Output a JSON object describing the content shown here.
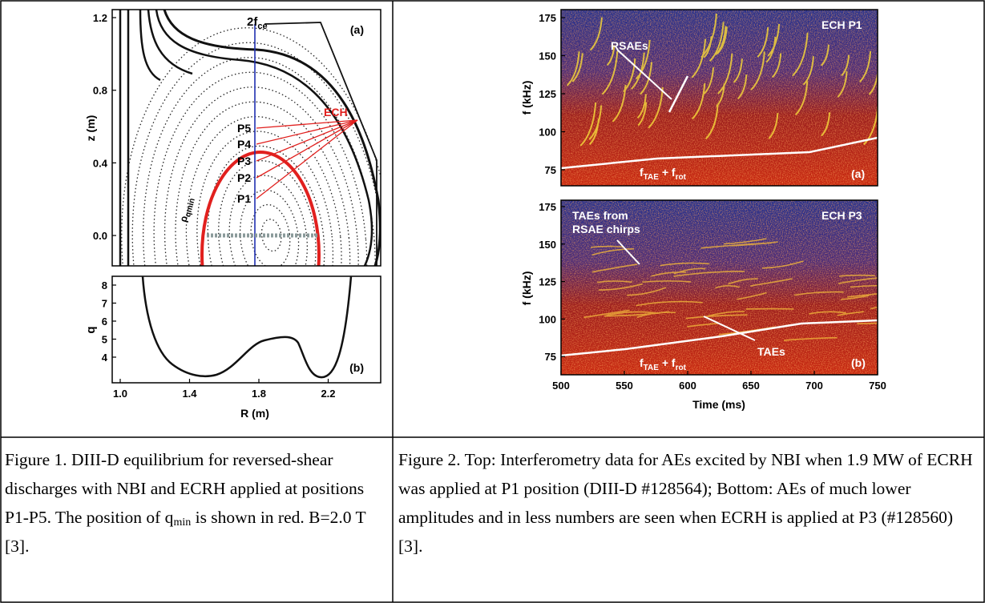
{
  "figure1": {
    "panel_a": {
      "label": "(a)",
      "y_axis_label": "z (m)",
      "yticks": [
        "1.2",
        "0.8",
        "0.4",
        "0.0"
      ],
      "beam_label": {
        "main": "2f",
        "sub": "ce"
      },
      "ech_label": "ECH",
      "positions": [
        "P5",
        "P4",
        "P3",
        "P2",
        "P1"
      ],
      "qmin_label": {
        "main": "ρ",
        "sub": "qmin"
      }
    },
    "panel_b": {
      "label": "(b)",
      "y_axis_label": "q",
      "yticks": [
        "8",
        "7",
        "6",
        "5",
        "4"
      ],
      "xticks": [
        "1.0",
        "1.4",
        "1.8",
        "2.2"
      ],
      "x_axis_label": "R (m)"
    },
    "caption": {
      "before": "Figure 1. DIII-D equilibrium for reversed-shear discharges with NBI and ECRH applied at positions P1-P5. The position of q",
      "sub": "min",
      "after": " is shown in red. B=2.0 T [3]."
    }
  },
  "figure2": {
    "panel_a": {
      "label": "(a)",
      "title": "ECH P1",
      "y_axis_label": "f (kHz)",
      "yticks": [
        "175",
        "150",
        "125",
        "100",
        "75"
      ],
      "annotations": [
        "RSAEs"
      ],
      "line_label": {
        "f1": "f",
        "sub1": "TAE",
        "plus": " + f",
        "sub2": "rot"
      }
    },
    "panel_b": {
      "label": "(b)",
      "title": "ECH P3",
      "y_axis_label": "f (kHz)",
      "yticks": [
        "175",
        "150",
        "125",
        "100",
        "75"
      ],
      "annotations": [
        "TAEs from",
        "RSAE chirps",
        "TAEs"
      ],
      "line_label": {
        "f1": "f",
        "sub1": "TAE",
        "plus": " + f",
        "sub2": "rot"
      }
    },
    "xticks": [
      "500",
      "550",
      "600",
      "650",
      "700",
      "750"
    ],
    "x_axis_label": "Time (ms)",
    "caption": "Figure 2. Top: Interferometry data for AEs excited by NBI when 1.9 MW of ECRH was applied at P1 position (DIII-D #128564); Bottom: AEs of much lower amplitudes and in less numbers are seen when ECRH is applied at P3 (#128560) [3]."
  }
}
